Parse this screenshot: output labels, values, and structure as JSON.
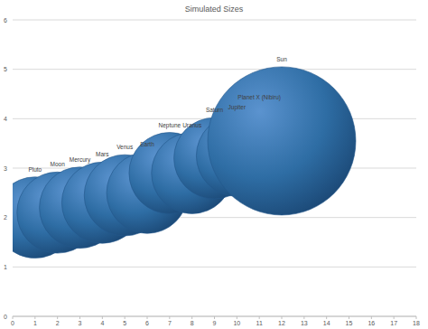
{
  "chart_data": {
    "type": "bubble",
    "title": "Simulated Sizes",
    "labels": [
      "Pluto",
      "Moon",
      "Mercury",
      "Mars",
      "Venus",
      "Earth",
      "Neptune",
      "Uranus",
      "Saturn",
      "Jupiter",
      "Planet X (Nibiru)",
      "Sun"
    ],
    "x": [
      1,
      2,
      3,
      4,
      5,
      6,
      7,
      8,
      9,
      10,
      11,
      12
    ],
    "values": [
      2.0,
      2.1,
      2.2,
      2.3,
      2.45,
      2.5,
      2.9,
      2.9,
      3.2,
      3.25,
      3.45,
      3.55
    ],
    "sizes": [
      30,
      30,
      30,
      30,
      30,
      30,
      30,
      30,
      30,
      30,
      30,
      100
    ],
    "color": "#2e6da4",
    "xlim": [
      0,
      18
    ],
    "xticks": [
      0,
      1,
      2,
      3,
      4,
      5,
      6,
      7,
      8,
      9,
      10,
      11,
      12,
      13,
      14,
      15,
      16,
      17,
      18
    ],
    "ylim": [
      0,
      6
    ],
    "yticks": [
      0,
      1,
      2,
      3,
      4,
      5,
      6
    ],
    "grid": true,
    "data_labels": true
  }
}
